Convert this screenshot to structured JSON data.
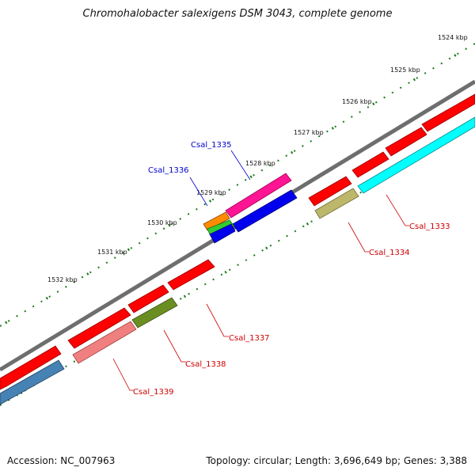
{
  "title": "Chromohalobacter salexigens DSM 3043, complete genome",
  "footer": {
    "accession": "Accession: NC_007963",
    "summary": "Topology: circular; Length: 3,696,649 bp; Genes: 3,388"
  },
  "kbp_ticks": [
    {
      "label": "1524 kbp"
    },
    {
      "label": "1525 kbp"
    },
    {
      "label": "1526 kbp"
    },
    {
      "label": "1527 kbp"
    },
    {
      "label": "1528 kbp"
    },
    {
      "label": "1529 kbp"
    },
    {
      "label": "1530 kbp"
    },
    {
      "label": "1531 kbp"
    },
    {
      "label": "1532 kbp"
    }
  ],
  "gene_labels": [
    {
      "name": "Csal_1333",
      "color": "#cc0000"
    },
    {
      "name": "Csal_1334",
      "color": "#cc0000"
    },
    {
      "name": "Csal_1335",
      "color": "#0000cc"
    },
    {
      "name": "Csal_1336",
      "color": "#0000cc"
    },
    {
      "name": "Csal_1337",
      "color": "#cc0000"
    },
    {
      "name": "Csal_1338",
      "color": "#cc0000"
    },
    {
      "name": "Csal_1339",
      "color": "#cc0000"
    }
  ],
  "colors": {
    "backbone": "#7a7a7a",
    "tick": "#1a7a1a",
    "cds_red": "#ff0000",
    "cds_cyan": "#00ffff",
    "cds_olive": "#bdb76b",
    "cds_darkolive": "#6b8e23",
    "cds_salmon": "#f08080",
    "cds_steel": "#4682b4",
    "cds_magenta": "#ff1493",
    "cds_blue": "#0000ee",
    "cds_orange": "#ff8c00",
    "cds_green": "#32cd32"
  }
}
